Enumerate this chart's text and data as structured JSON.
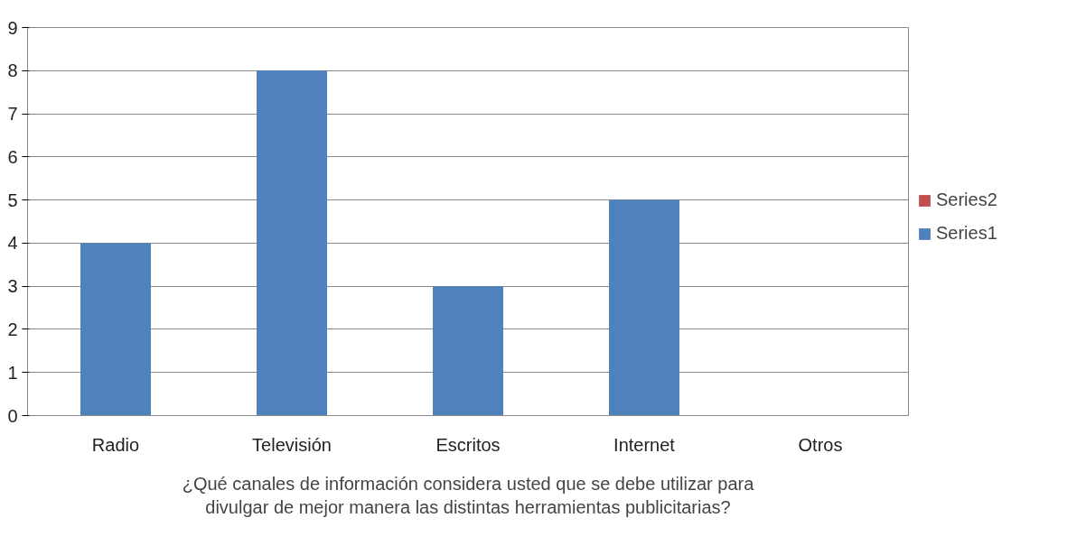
{
  "chart_data": {
    "type": "bar",
    "xlabel": "¿Qué canales de información considera usted que se debe utilizar para divulgar de mejor manera las distintas herramientas publicitarias?",
    "categories": [
      "Radio",
      "Televisión",
      "Escritos",
      "Internet",
      "Otros"
    ],
    "series": [
      {
        "name": "Series1",
        "color": "#4f81bd",
        "values": [
          4,
          8,
          3,
          5,
          null
        ]
      },
      {
        "name": "Series2",
        "color": "#c0504d",
        "values": [
          0,
          0,
          0,
          0,
          0
        ]
      }
    ],
    "ylim": [
      0,
      9
    ],
    "yticks": [
      0,
      1,
      2,
      3,
      4,
      5,
      6,
      7,
      8,
      9
    ],
    "grid": "y",
    "legend": "right"
  }
}
